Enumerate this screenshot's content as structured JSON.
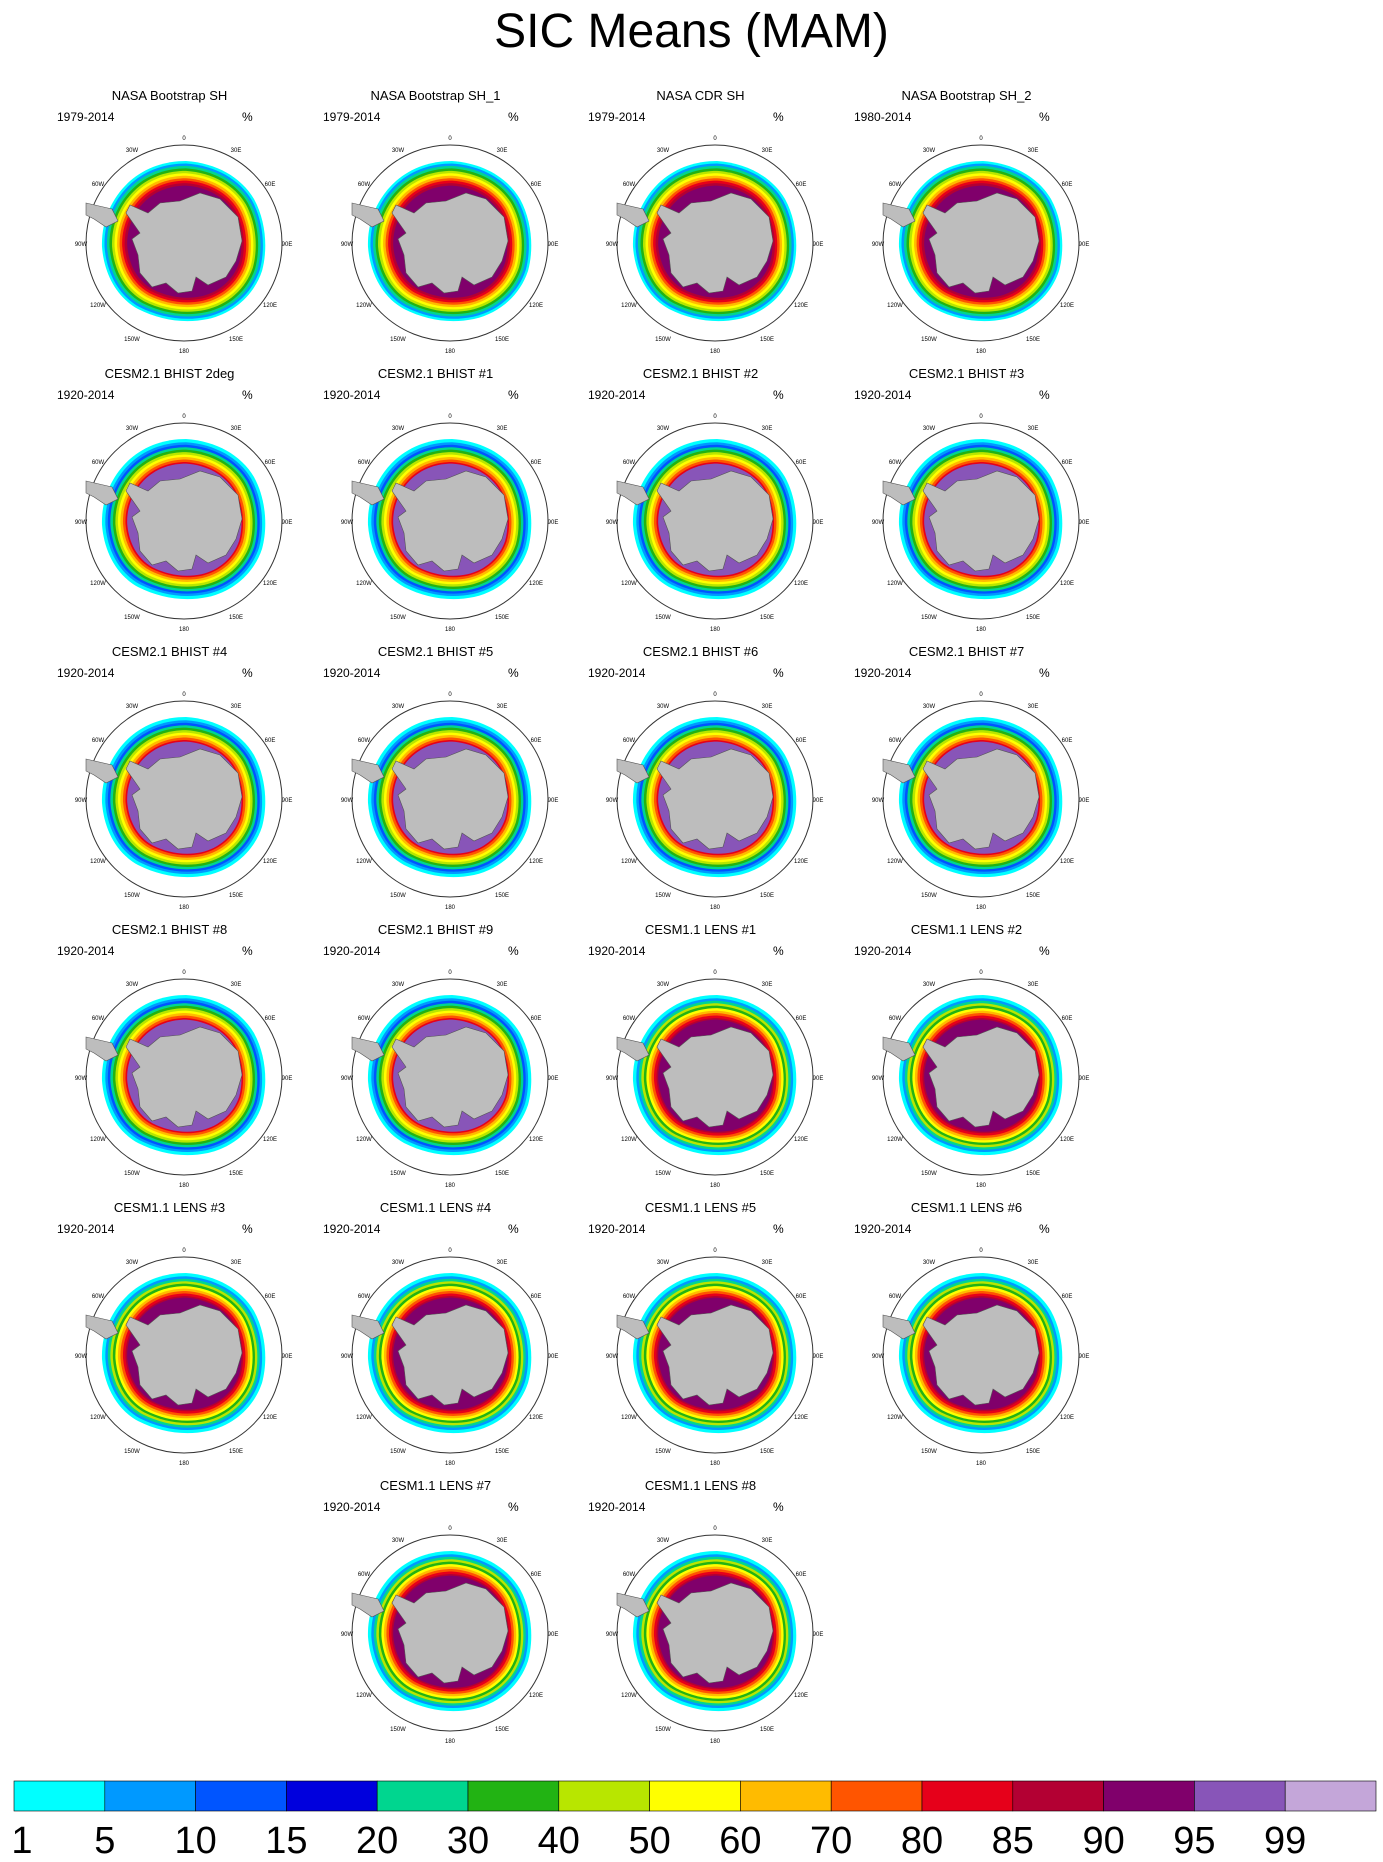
{
  "title": "SIC Means (MAM)",
  "units": "%",
  "panels": [
    {
      "label": "NASA Bootstrap SH",
      "years": "1979-2014",
      "style": "obs"
    },
    {
      "label": "NASA Bootstrap SH_1",
      "years": "1979-2014",
      "style": "obs"
    },
    {
      "label": "NASA CDR SH",
      "years": "1979-2014",
      "style": "obs"
    },
    {
      "label": "NASA Bootstrap SH_2",
      "years": "1980-2014",
      "style": "obs"
    },
    {
      "label": "CESM2.1 BHIST 2deg",
      "years": "1920-2014",
      "style": "cesm2"
    },
    {
      "label": "CESM2.1 BHIST #1",
      "years": "1920-2014",
      "style": "cesm2"
    },
    {
      "label": "CESM2.1 BHIST #2",
      "years": "1920-2014",
      "style": "cesm2"
    },
    {
      "label": "CESM2.1 BHIST #3",
      "years": "1920-2014",
      "style": "cesm2"
    },
    {
      "label": "CESM2.1 BHIST #4",
      "years": "1920-2014",
      "style": "cesm2"
    },
    {
      "label": "CESM2.1 BHIST #5",
      "years": "1920-2014",
      "style": "cesm2"
    },
    {
      "label": "CESM2.1 BHIST #6",
      "years": "1920-2014",
      "style": "cesm2"
    },
    {
      "label": "CESM2.1 BHIST #7",
      "years": "1920-2014",
      "style": "cesm2"
    },
    {
      "label": "CESM2.1 BHIST #8",
      "years": "1920-2014",
      "style": "cesm2"
    },
    {
      "label": "CESM2.1 BHIST #9",
      "years": "1920-2014",
      "style": "cesm2"
    },
    {
      "label": "CESM1.1 LENS #1",
      "years": "1920-2014",
      "style": "lens"
    },
    {
      "label": "CESM1.1 LENS #2",
      "years": "1920-2014",
      "style": "lens"
    },
    {
      "label": "CESM1.1 LENS #3",
      "years": "1920-2014",
      "style": "lens"
    },
    {
      "label": "CESM1.1 LENS #4",
      "years": "1920-2014",
      "style": "lens"
    },
    {
      "label": "CESM1.1 LENS #5",
      "years": "1920-2014",
      "style": "lens"
    },
    {
      "label": "CESM1.1 LENS #6",
      "years": "1920-2014",
      "style": "lens"
    },
    {
      "label": "CESM1.1 LENS #7",
      "years": "1920-2014",
      "style": "lens"
    },
    {
      "label": "CESM1.1 LENS #8",
      "years": "1920-2014",
      "style": "lens"
    }
  ],
  "map_labels": {
    "top": "0",
    "bottom": "180",
    "left": "90W",
    "right": "90E",
    "upper_left_1": "30W",
    "upper_left_2": "60W",
    "upper_right_1": "30E",
    "upper_right_2": "60E",
    "lower_left_1": "120W",
    "lower_left_2": "150W",
    "lower_right_1": "120E",
    "lower_right_2": "150E"
  },
  "colorbar": {
    "levels": [
      "1",
      "5",
      "10",
      "15",
      "20",
      "30",
      "40",
      "50",
      "60",
      "70",
      "80",
      "85",
      "90",
      "95",
      "99"
    ],
    "colors": [
      "#00ffff",
      "#0099ff",
      "#0055ff",
      "#0000dd",
      "#00d68f",
      "#22b313",
      "#b8e600",
      "#ffff00",
      "#ffbb00",
      "#ff5500",
      "#e6001a",
      "#b30033",
      "#80006b",
      "#8855b8",
      "#c4a6d9"
    ]
  },
  "land_color": "#bdbdbd"
}
